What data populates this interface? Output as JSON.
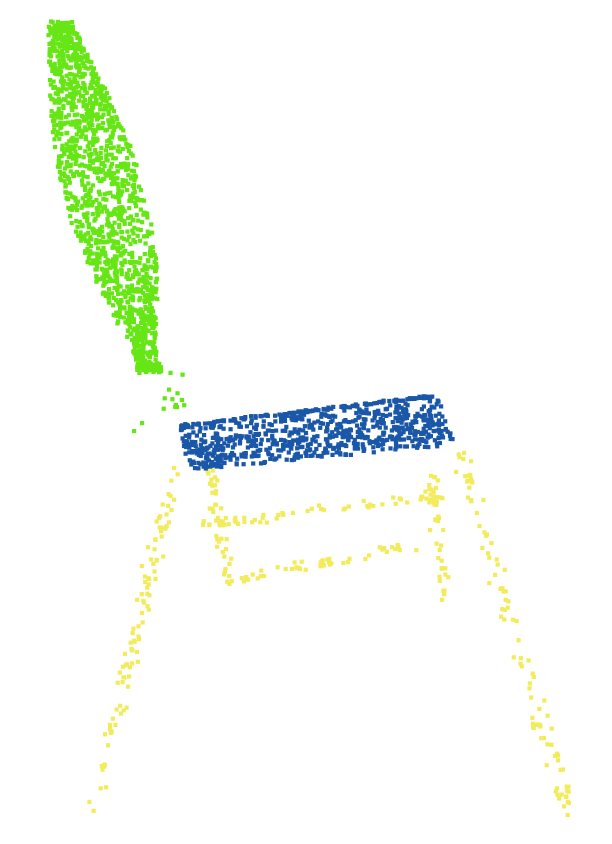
{
  "figure": {
    "kind": "point-cloud part segmentation",
    "object": "chair",
    "background": "#ffffff",
    "parts": [
      {
        "name": "back",
        "color": "#66e615"
      },
      {
        "name": "seat",
        "color": "#1a57a8"
      },
      {
        "name": "legs",
        "color": "#f2ec5c"
      }
    ]
  }
}
